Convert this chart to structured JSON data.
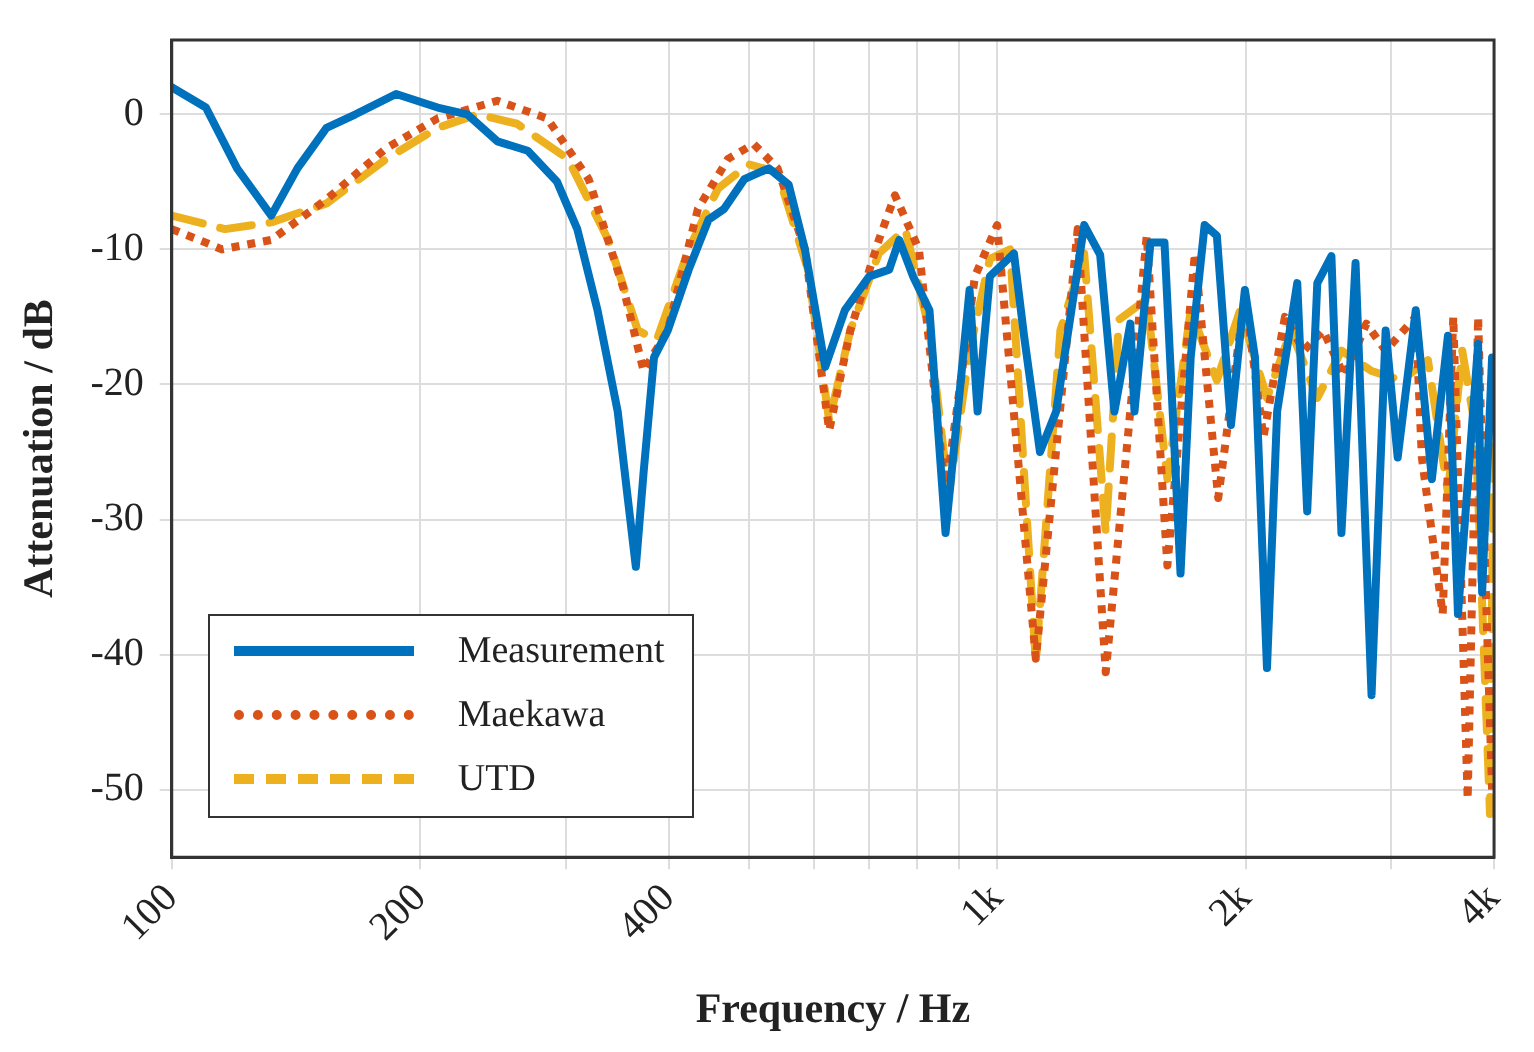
{
  "chart_data": {
    "type": "line",
    "xlabel": "Frequency / Hz",
    "ylabel": "Attenuation / dB",
    "log": "x",
    "xlim": [
      100,
      4000
    ],
    "ylim": [
      -55,
      5.5
    ],
    "xticks": [
      100,
      200,
      {
        "value": 300,
        "label": null
      },
      400,
      {
        "value": 500,
        "label": null
      },
      {
        "value": 600,
        "label": null
      },
      {
        "value": 700,
        "label": null
      },
      {
        "value": 800,
        "label": null
      },
      {
        "value": 900,
        "label": null
      },
      {
        "value": 1000,
        "label": "1k"
      },
      {
        "value": 2000,
        "label": "2k"
      },
      {
        "value": 3000,
        "label": null
      },
      {
        "value": 4000,
        "label": "4k"
      }
    ],
    "yticks": [
      -50,
      -40,
      -30,
      -20,
      -10,
      0
    ],
    "grid": true,
    "legend": "bottom left",
    "marker": "none",
    "series": [
      {
        "name": "Measurement",
        "color": "#0072bd",
        "line_style": "solid",
        "x": [
          100,
          110,
          120,
          132,
          142,
          154,
          167,
          187,
          210,
          228,
          248,
          270,
          293,
          310,
          328,
          347,
          357,
          365,
          373,
          384,
          399,
          423,
          447,
          467,
          494,
          529,
          559,
          585,
          619,
          654,
          700,
          740,
          761,
          791,
          828,
          866,
          901,
          926,
          947,
          980,
          1048,
          1078,
          1127,
          1179,
          1275,
          1333,
          1387,
          1450,
          1467,
          1534,
          1595,
          1668,
          1716,
          1784,
          1846,
          1920,
          1996,
          2053,
          2123,
          2184,
          2310,
          2375,
          2443,
          2541,
          2613,
          2718,
          2842,
          2956,
          3057,
          3215,
          3363,
          3517,
          3617,
          3826,
          3869,
          3978
        ],
        "values": [
          2,
          0.5,
          -4,
          -7.5,
          -4,
          -1,
          0,
          1.5,
          0.5,
          0,
          -2,
          -2.7,
          -5,
          -8.5,
          -14.5,
          -22,
          -28.5,
          -33.5,
          -26.5,
          -18,
          -16,
          -11.5,
          -7.8,
          -7,
          -4.8,
          -4,
          -5.2,
          -10,
          -18.7,
          -14.5,
          -12,
          -11.5,
          -9.3,
          -12,
          -14.5,
          -31,
          -20.5,
          -13,
          -22,
          -12,
          -10.3,
          -16.4,
          -25,
          -22,
          -8.2,
          -10.4,
          -22,
          -15.5,
          -22,
          -9.5,
          -9.5,
          -34,
          -18,
          -8.2,
          -9,
          -23,
          -13,
          -18,
          -41,
          -22,
          -12.5,
          -29.4,
          -12.5,
          -10.5,
          -31,
          -11,
          -43,
          -16,
          -25.4,
          -14.5,
          -27,
          -16.4,
          -37,
          -17,
          -35.4,
          -18
        ]
      },
      {
        "name": "Maekawa",
        "color": "#d95319",
        "line_style": "dotted",
        "x": [
          100,
          110,
          115,
          132,
          154,
          182,
          210,
          248,
          285,
          320,
          353,
          373,
          399,
          434,
          472,
          507,
          542,
          585,
          626,
          664,
          719,
          752,
          804,
          866,
          940,
          1000,
          1114,
          1252,
          1354,
          1518,
          1608,
          1736,
          1853,
          1996,
          2102,
          2232,
          2352,
          2483,
          2635,
          2801,
          2956,
          3215,
          3270,
          3466,
          3570,
          3716,
          3826,
          3910,
          3978
        ],
        "values": [
          -8.5,
          -9.5,
          -10,
          -9.3,
          -6.3,
          -2.5,
          -0.3,
          1,
          -0.3,
          -4.8,
          -13,
          -19,
          -16,
          -7,
          -3.3,
          -2.2,
          -4,
          -10,
          -23.4,
          -16,
          -9.3,
          -6,
          -10,
          -28,
          -12,
          -8.2,
          -40.3,
          -8.5,
          -41.3,
          -9,
          -33.4,
          -10.3,
          -28.4,
          -13.4,
          -23.9,
          -15,
          -17.5,
          -16,
          -19.4,
          -15.5,
          -17.5,
          -15,
          -25.4,
          -37,
          -15,
          -50.7,
          -15,
          -35.4,
          -50
        ]
      },
      {
        "name": "UTD",
        "color": "#edb120",
        "line_style": "dashed",
        "x": [
          100,
          116,
          132,
          154,
          182,
          210,
          235,
          262,
          302,
          338,
          367,
          387,
          423,
          459,
          500,
          542,
          590,
          626,
          664,
          719,
          774,
          828,
          874,
          926,
          980,
          1037,
          1114,
          1193,
          1275,
          1354,
          1405,
          1518,
          1608,
          1716,
          1846,
          1970,
          2123,
          2270,
          2443,
          2613,
          2842,
          3089,
          3326,
          3517,
          3660,
          3800,
          3955,
          4000
        ],
        "values": [
          -7.5,
          -8.5,
          -8,
          -6.6,
          -3.3,
          -1,
          0,
          -0.7,
          -3.3,
          -9.3,
          -16,
          -16.7,
          -10,
          -5.5,
          -3.7,
          -4.3,
          -11.5,
          -22.7,
          -16,
          -10.3,
          -8.5,
          -16,
          -28.2,
          -17.5,
          -10.7,
          -10,
          -40.6,
          -16,
          -10.3,
          -31,
          -15.2,
          -13.7,
          -27,
          -14.5,
          -19.7,
          -14.5,
          -21,
          -16,
          -21,
          -17.5,
          -19,
          -19.7,
          -18.2,
          -28,
          -17.5,
          -23.4,
          -51.8,
          -20.5
        ]
      }
    ]
  }
}
